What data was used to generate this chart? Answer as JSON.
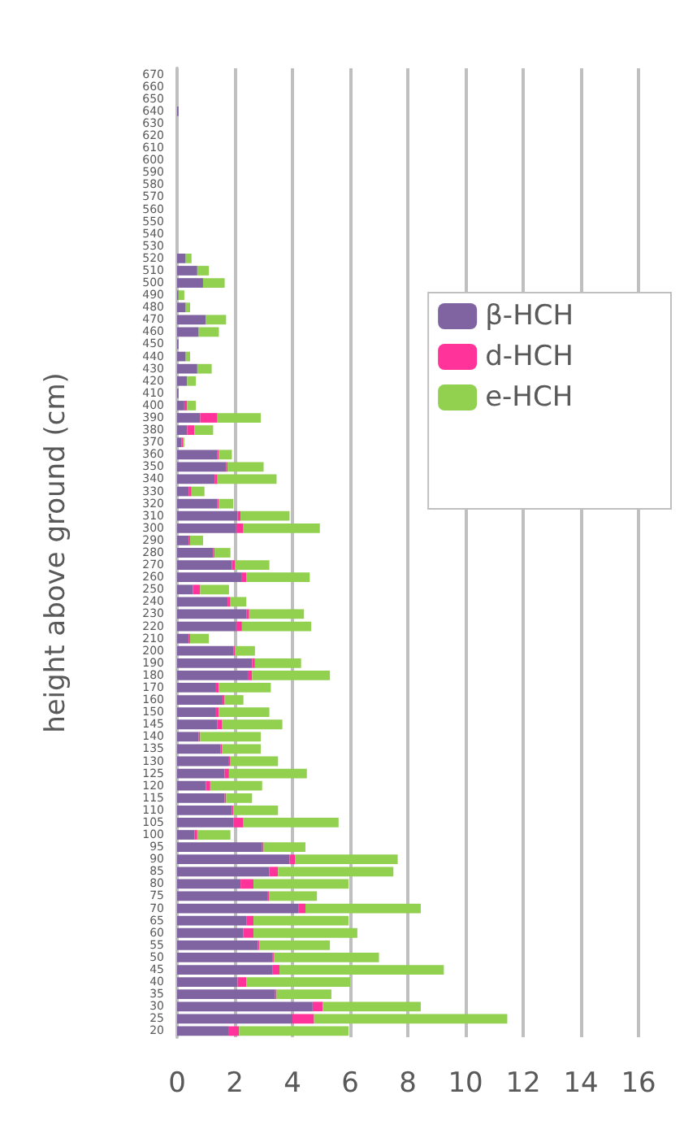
{
  "chart_data": {
    "type": "bar",
    "orientation": "horizontal",
    "stacked": true,
    "ylabel": "height above ground (cm)",
    "categories": [
      "670",
      "660",
      "650",
      "640",
      "630",
      "620",
      "610",
      "600",
      "590",
      "580",
      "570",
      "560",
      "550",
      "540",
      "530",
      "520",
      "510",
      "500",
      "490",
      "480",
      "470",
      "460",
      "450",
      "440",
      "430",
      "420",
      "410",
      "400",
      "390",
      "380",
      "370",
      "360",
      "350",
      "340",
      "330",
      "320",
      "310",
      "300",
      "290",
      "280",
      "270",
      "260",
      "250",
      "240",
      "230",
      "220",
      "210",
      "200",
      "190",
      "180",
      "170",
      "160",
      "150",
      "145",
      "140",
      "135",
      "130",
      "125",
      "120",
      "115",
      "110",
      "105",
      "100",
      "95",
      "90",
      "85",
      "80",
      "75",
      "70",
      "65",
      "60",
      "55",
      "50",
      "45",
      "40",
      "35",
      "30",
      "25",
      "20"
    ],
    "series": [
      {
        "name": "β-HCH",
        "color": "#8064a2",
        "values": [
          0,
          0,
          0,
          0.05,
          0,
          0,
          0,
          0,
          0,
          0,
          0,
          0,
          0,
          0,
          0,
          0.3,
          0.7,
          0.9,
          0.05,
          0.3,
          1.0,
          0.75,
          0.05,
          0.3,
          0.7,
          0.35,
          0.05,
          0.25,
          0.8,
          0.35,
          0.15,
          1.4,
          1.7,
          1.3,
          0.4,
          1.4,
          2.1,
          2.05,
          0.4,
          1.25,
          1.9,
          2.25,
          0.55,
          1.75,
          2.4,
          2.05,
          0.4,
          1.95,
          2.6,
          2.45,
          1.35,
          1.55,
          1.35,
          1.4,
          0.75,
          1.5,
          1.8,
          1.65,
          1.0,
          1.65,
          1.9,
          1.95,
          0.6,
          2.95,
          3.9,
          3.2,
          2.2,
          3.15,
          4.2,
          2.4,
          2.3,
          2.8,
          3.3,
          3.3,
          2.1,
          3.4,
          4.7,
          4.0,
          1.8
        ]
      },
      {
        "name": "d-HCH",
        "color": "#ff3399",
        "values": [
          0,
          0,
          0,
          0,
          0,
          0,
          0,
          0,
          0,
          0,
          0,
          0,
          0,
          0,
          0,
          0,
          0,
          0,
          0,
          0,
          0,
          0,
          0,
          0,
          0,
          0,
          0,
          0.1,
          0.6,
          0.25,
          0.05,
          0.05,
          0.05,
          0.1,
          0.1,
          0.05,
          0.1,
          0.25,
          0.05,
          0.05,
          0.1,
          0.15,
          0.25,
          0.1,
          0.1,
          0.2,
          0.05,
          0.05,
          0.1,
          0.15,
          0.1,
          0.1,
          0.1,
          0.15,
          0.05,
          0.05,
          0.05,
          0.15,
          0.15,
          0.05,
          0.05,
          0.35,
          0.1,
          0.05,
          0.2,
          0.3,
          0.45,
          0.05,
          0.25,
          0.25,
          0.35,
          0.05,
          0.05,
          0.25,
          0.3,
          0.05,
          0.35,
          0.75,
          0.35
        ]
      },
      {
        "name": "e-HCH",
        "color": "#92d050",
        "values": [
          0,
          0,
          0,
          0,
          0,
          0,
          0,
          0,
          0,
          0,
          0,
          0,
          0,
          0,
          0,
          0.2,
          0.4,
          0.75,
          0.2,
          0.15,
          0.7,
          0.7,
          0,
          0.15,
          0.5,
          0.3,
          0,
          0.3,
          1.5,
          0.65,
          0.05,
          0.45,
          1.25,
          2.05,
          0.45,
          0.5,
          1.7,
          2.65,
          0.45,
          0.55,
          1.2,
          2.2,
          1.0,
          0.55,
          1.9,
          2.4,
          0.65,
          0.7,
          1.6,
          2.7,
          1.8,
          0.65,
          1.75,
          2.1,
          2.1,
          1.35,
          1.65,
          2.7,
          1.8,
          0.9,
          1.55,
          3.3,
          1.15,
          1.45,
          3.55,
          4.0,
          3.3,
          1.65,
          4.0,
          3.3,
          3.6,
          2.45,
          3.65,
          5.7,
          3.6,
          1.9,
          3.4,
          6.7,
          3.8
        ]
      }
    ],
    "xlim": [
      0,
      16
    ],
    "xticks": [
      0,
      2,
      4,
      6,
      8,
      10,
      12,
      14,
      16
    ],
    "grid": "x",
    "legend": "top right"
  }
}
